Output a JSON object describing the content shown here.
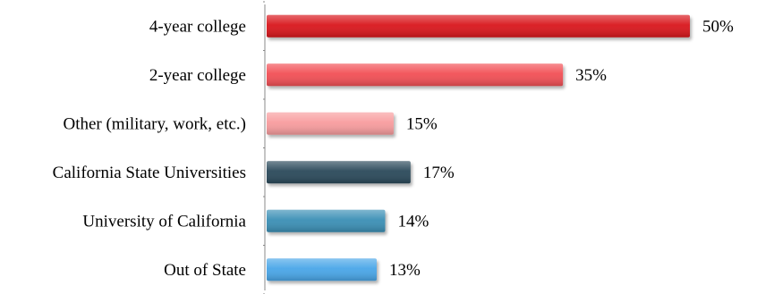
{
  "chart_data": {
    "type": "bar",
    "orientation": "horizontal",
    "categories": [
      "4-year college",
      "2-year college",
      "Other (military, work, etc.)",
      "California State Universities",
      "University of California",
      "Out of State"
    ],
    "values": [
      50,
      35,
      15,
      17,
      14,
      13
    ],
    "value_labels": [
      "50%",
      "35%",
      "15%",
      "17%",
      "14%",
      "13%"
    ],
    "bar_colors": [
      "#d9141b",
      "#f25055",
      "#f89c9e",
      "#2c4a5a",
      "#3b8fb5",
      "#4aa6e8"
    ],
    "xlim": [
      0,
      50
    ],
    "grid": false,
    "legend": "none",
    "title": "",
    "xlabel": "",
    "ylabel": ""
  }
}
